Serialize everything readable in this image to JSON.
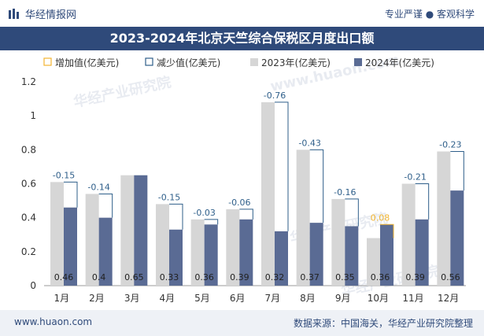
{
  "header": {
    "brand_name": "华经情报网",
    "tagline": "专业严谨 ● 客观科学",
    "title": "2023-2024年北京天竺综合保税区月度出口额"
  },
  "footer": {
    "url": "www.huaon.com",
    "source": "数据来源：中国海关，华经产业研究院整理"
  },
  "watermarks": [
    "华经产业研究院",
    "www.huaon.com",
    "华经产业研究院",
    "华经产业研究院"
  ],
  "colors": {
    "bar_2023": "#d6d6d6",
    "bar_2024": "#5a6b94",
    "increase": "#f2b531",
    "decrease": "#2f5f8a",
    "title_bg": "#2f4a7a"
  },
  "chart_data": {
    "type": "bar",
    "title": "2023-2024年北京天竺综合保税区月度出口额",
    "categories": [
      "1月",
      "2月",
      "3月",
      "4月",
      "5月",
      "6月",
      "7月",
      "8月",
      "9月",
      "10月",
      "11月",
      "12月"
    ],
    "series": [
      {
        "name": "2023年(亿美元)",
        "values": [
          0.61,
          0.54,
          0.65,
          0.48,
          0.39,
          0.45,
          1.08,
          0.8,
          0.51,
          0.28,
          0.6,
          0.79
        ]
      },
      {
        "name": "2024年(亿美元)",
        "values": [
          0.46,
          0.4,
          0.65,
          0.33,
          0.36,
          0.39,
          0.32,
          0.37,
          0.35,
          0.36,
          0.39,
          0.56
        ]
      }
    ],
    "change": {
      "increase_name": "增加值(亿美元)",
      "decrease_name": "减少值(亿美元)",
      "values": [
        -0.15,
        -0.14,
        0,
        -0.15,
        -0.03,
        -0.06,
        -0.76,
        -0.43,
        -0.16,
        0.08,
        -0.21,
        -0.23
      ],
      "labels": [
        "-0.15",
        "-0.14",
        "",
        "-0.15",
        "-0.03",
        "-0.06",
        "-0.76",
        "-0.43",
        "-0.16",
        "0.08",
        "-0.21",
        "-0.23"
      ]
    },
    "value_labels_2024": [
      "0.46",
      "0.4",
      "0.65",
      "0.33",
      "0.36",
      "0.39",
      "0.32",
      "0.37",
      "0.35",
      "0.36",
      "0.39",
      "0.56"
    ],
    "ylim": [
      0,
      1.2
    ],
    "yticks": [
      "0",
      "0.2",
      "0.4",
      "0.6",
      "0.8",
      "1",
      "1.2"
    ],
    "legend_position": "top",
    "grid": false
  }
}
